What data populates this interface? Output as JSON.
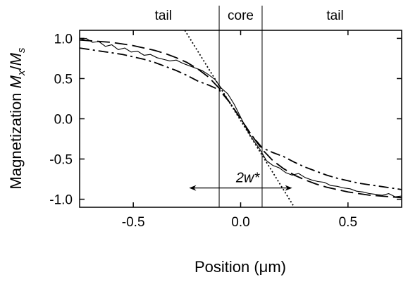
{
  "chart_data": {
    "type": "line",
    "xlabel": "Position (μm)",
    "ylabel": "Magnetization M_x/M_s",
    "xlim": [
      -0.75,
      0.75
    ],
    "ylim": [
      -1.1,
      1.1
    ],
    "x_ticks": [
      -0.5,
      0.0,
      0.5
    ],
    "x_tick_labels": [
      "-0.5",
      "0.0",
      "0.5"
    ],
    "y_ticks": [
      1.0,
      0.5,
      0.0,
      -0.5,
      -1.0
    ],
    "y_tick_labels": [
      "1.0",
      "0.5",
      "0.0",
      "-0.5",
      "-1.0"
    ],
    "grid": false,
    "regions": [
      {
        "label": "tail",
        "from": -0.75,
        "to": -0.1
      },
      {
        "label": "core",
        "from": -0.1,
        "to": 0.1
      },
      {
        "label": "tail",
        "from": 0.1,
        "to": 0.75
      }
    ],
    "vertical_lines": [
      -0.1,
      0.1
    ],
    "annotation": {
      "text": "2w*",
      "x_from": -0.24,
      "x_to": 0.24,
      "y": -0.86
    },
    "series": [
      {
        "style": "solid",
        "x": [
          -0.75,
          -0.72,
          -0.69,
          -0.66,
          -0.63,
          -0.6,
          -0.57,
          -0.54,
          -0.51,
          -0.48,
          -0.45,
          -0.42,
          -0.39,
          -0.36,
          -0.33,
          -0.3,
          -0.27,
          -0.24,
          -0.21,
          -0.18,
          -0.15,
          -0.12,
          -0.09,
          -0.06,
          -0.03,
          0.0,
          0.03,
          0.06,
          0.09,
          0.12,
          0.15,
          0.18,
          0.21,
          0.24,
          0.27,
          0.3,
          0.33,
          0.36,
          0.39,
          0.42,
          0.45,
          0.48,
          0.51,
          0.54,
          0.57,
          0.6,
          0.63,
          0.66,
          0.69,
          0.72,
          0.75
        ],
        "y": [
          0.98,
          1.0,
          0.95,
          0.96,
          0.9,
          0.92,
          0.86,
          0.88,
          0.83,
          0.84,
          0.79,
          0.8,
          0.76,
          0.74,
          0.72,
          0.73,
          0.69,
          0.66,
          0.63,
          0.6,
          0.55,
          0.49,
          0.38,
          0.31,
          0.18,
          0.02,
          -0.14,
          -0.27,
          -0.38,
          -0.52,
          -0.58,
          -0.61,
          -0.67,
          -0.7,
          -0.68,
          -0.73,
          -0.76,
          -0.78,
          -0.79,
          -0.83,
          -0.84,
          -0.86,
          -0.87,
          -0.9,
          -0.91,
          -0.93,
          -0.94,
          -0.95,
          -0.93,
          -0.97,
          -0.96
        ]
      },
      {
        "style": "dashed",
        "x": [
          -0.75,
          -0.7,
          -0.65,
          -0.6,
          -0.55,
          -0.5,
          -0.45,
          -0.4,
          -0.35,
          -0.3,
          -0.25,
          -0.2,
          -0.15,
          -0.1,
          -0.05,
          0.0,
          0.05,
          0.1,
          0.15,
          0.2,
          0.25,
          0.3,
          0.35,
          0.4,
          0.45,
          0.5,
          0.55,
          0.6,
          0.65,
          0.7,
          0.75
        ],
        "y": [
          0.98,
          0.97,
          0.96,
          0.95,
          0.93,
          0.91,
          0.88,
          0.85,
          0.81,
          0.76,
          0.7,
          0.62,
          0.52,
          0.38,
          0.2,
          0.0,
          -0.2,
          -0.38,
          -0.52,
          -0.62,
          -0.7,
          -0.76,
          -0.81,
          -0.85,
          -0.88,
          -0.91,
          -0.93,
          -0.95,
          -0.96,
          -0.97,
          -0.98
        ]
      },
      {
        "style": "dash-dot",
        "x": [
          -0.75,
          -0.7,
          -0.65,
          -0.6,
          -0.55,
          -0.5,
          -0.45,
          -0.4,
          -0.35,
          -0.3,
          -0.25,
          -0.2,
          -0.15,
          -0.1,
          -0.05,
          0.0,
          0.05,
          0.1,
          0.15,
          0.2,
          0.25,
          0.3,
          0.35,
          0.4,
          0.45,
          0.5,
          0.55,
          0.6,
          0.65,
          0.7,
          0.75
        ],
        "y": [
          0.88,
          0.86,
          0.84,
          0.82,
          0.8,
          0.77,
          0.74,
          0.7,
          0.65,
          0.6,
          0.54,
          0.47,
          0.42,
          0.36,
          0.2,
          0.0,
          -0.2,
          -0.36,
          -0.42,
          -0.47,
          -0.54,
          -0.6,
          -0.65,
          -0.7,
          -0.74,
          -0.77,
          -0.8,
          -0.82,
          -0.84,
          -0.86,
          -0.88
        ]
      },
      {
        "style": "dotted",
        "x": [
          -0.26,
          0.25
        ],
        "y": [
          1.1,
          -1.1
        ]
      }
    ]
  }
}
